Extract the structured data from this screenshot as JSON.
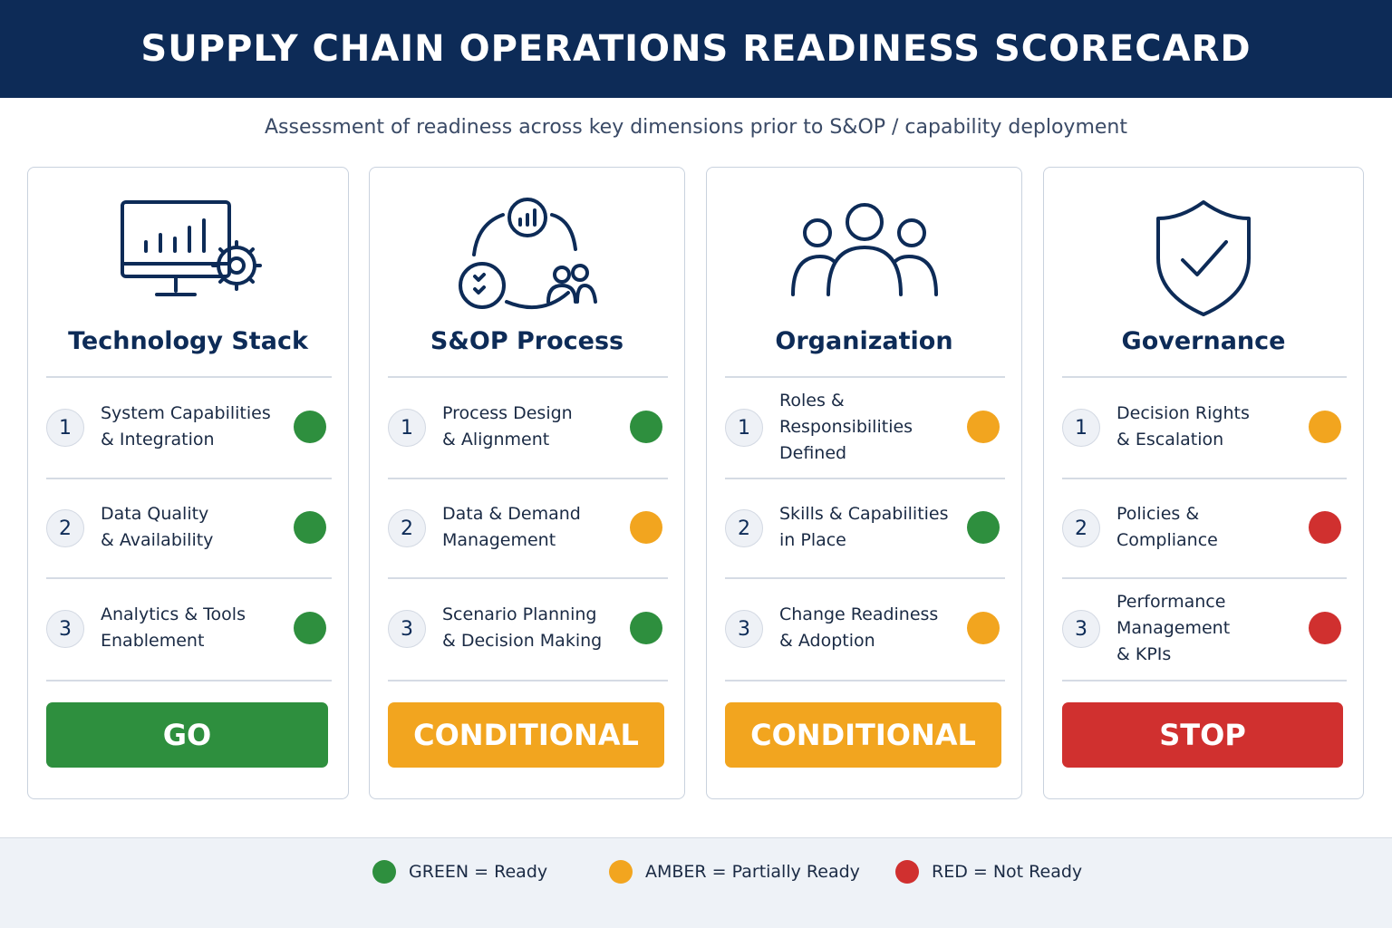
{
  "header": {
    "title": "SUPPLY CHAIN OPERATIONS READINESS SCORECARD",
    "subtitle": "Assessment of readiness across key dimensions prior to S&OP / capability deployment"
  },
  "cards": [
    {
      "title": "Technology Stack",
      "items": [
        {
          "number": 1,
          "lines": [
            "System Capabilities",
            "& Integration"
          ],
          "color": "#2e8f3e"
        },
        {
          "number": 2,
          "lines": [
            "Data Quality",
            "& Availability"
          ],
          "color": "#2e8f3e"
        },
        {
          "number": 3,
          "lines": [
            "Analytics & Tools",
            "Enablement"
          ],
          "color": "#2e8f3e"
        }
      ],
      "verdict": {
        "text": "GO",
        "color": "#2e8f3e"
      }
    },
    {
      "title": "S&OP Process",
      "items": [
        {
          "number": 1,
          "lines": [
            "Process Design",
            "& Alignment"
          ],
          "color": "#2e8f3e"
        },
        {
          "number": 2,
          "lines": [
            "Data & Demand",
            "Management"
          ],
          "color": "#f2a51f"
        },
        {
          "number": 3,
          "lines": [
            "Scenario Planning",
            "& Decision Making"
          ],
          "color": "#2e8f3e"
        }
      ],
      "verdict": {
        "text": "CONDITIONAL",
        "color": "#f2a51f"
      }
    },
    {
      "title": "Organization",
      "items": [
        {
          "number": 1,
          "lines": [
            "Roles & Responsibilities",
            "Defined"
          ],
          "color": "#f2a51f"
        },
        {
          "number": 2,
          "lines": [
            "Skills & Capabilities",
            "in Place"
          ],
          "color": "#2e8f3e"
        },
        {
          "number": 3,
          "lines": [
            "Change Readiness",
            "& Adoption"
          ],
          "color": "#f2a51f"
        }
      ],
      "verdict": {
        "text": "CONDITIONAL",
        "color": "#f2a51f"
      }
    },
    {
      "title": "Governance",
      "items": [
        {
          "number": 1,
          "lines": [
            "Decision Rights",
            "& Escalation"
          ],
          "color": "#f2a51f"
        },
        {
          "number": 2,
          "lines": [
            "Policies & Compliance"
          ],
          "color": "#d0302f"
        },
        {
          "number": 3,
          "lines": [
            "Performance Management",
            "& KPIs"
          ],
          "color": "#d0302f"
        }
      ],
      "verdict": {
        "text": "STOP",
        "color": "#d0302f"
      }
    }
  ],
  "legend": [
    {
      "text": "GREEN = Ready",
      "color": "#2e8f3e"
    },
    {
      "text": "AMBER = Partially Ready",
      "color": "#f2a51f"
    },
    {
      "text": "RED = Not Ready",
      "color": "#d0302f"
    }
  ]
}
